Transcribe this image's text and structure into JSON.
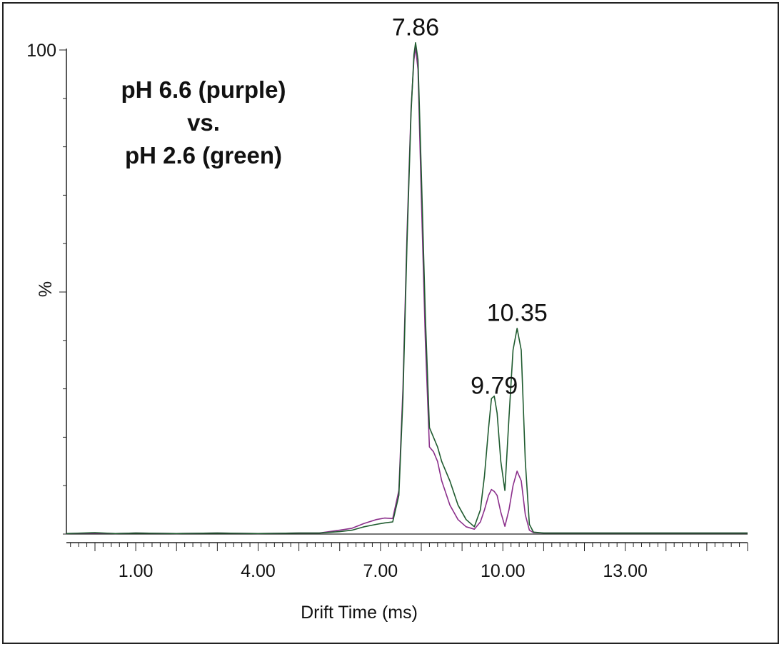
{
  "chart_data": {
    "type": "line",
    "title": "",
    "xlabel": "Drift Time (ms)",
    "ylabel": "%",
    "xlim": [
      -0.7,
      16.0
    ],
    "ylim": [
      0,
      100
    ],
    "x_tick_labels": [
      "1.00",
      "4.00",
      "7.00",
      "10.00",
      "13.00"
    ],
    "x_tick_values": [
      1.0,
      4.0,
      7.0,
      10.0,
      13.0
    ],
    "y_tick_labels": [
      "100",
      ""
    ],
    "y_tick_values": [
      100,
      50
    ],
    "annotation": [
      "pH 6.6 (purple)",
      "vs.",
      "pH 2.6 (green)"
    ],
    "peak_labels": [
      {
        "text": "7.86",
        "x": 7.86,
        "y": 103
      },
      {
        "text": "9.79",
        "x": 9.79,
        "y": 29
      },
      {
        "text": "10.35",
        "x": 10.35,
        "y": 44
      }
    ],
    "series": [
      {
        "name": "pH 6.6",
        "color": "#8b2f8b",
        "x": [
          -0.7,
          0.0,
          0.5,
          1.0,
          2.0,
          3.0,
          4.0,
          5.0,
          5.5,
          6.0,
          6.3,
          6.6,
          6.9,
          7.1,
          7.3,
          7.45,
          7.55,
          7.65,
          7.75,
          7.82,
          7.86,
          7.92,
          8.0,
          8.1,
          8.2,
          8.3,
          8.4,
          8.5,
          8.7,
          8.9,
          9.1,
          9.3,
          9.45,
          9.55,
          9.65,
          9.72,
          9.79,
          9.86,
          9.95,
          10.05,
          10.15,
          10.25,
          10.35,
          10.45,
          10.55,
          10.65,
          10.75,
          11.0,
          12.0,
          13.0,
          14.0,
          15.0,
          16.0
        ],
        "values": [
          0.1,
          0.2,
          0.1,
          0.2,
          0.1,
          0.2,
          0.1,
          0.2,
          0.2,
          0.8,
          1.2,
          2.2,
          3.0,
          3.3,
          3.2,
          9,
          30,
          62,
          88,
          98,
          100.5,
          96,
          70,
          40,
          18,
          17,
          15,
          11,
          6,
          3,
          1.5,
          1.0,
          2.5,
          5,
          8,
          9.2,
          8.8,
          8,
          4.5,
          1.6,
          5,
          10,
          13,
          11,
          4,
          0.8,
          0.3,
          0.2,
          0.2,
          0.2,
          0.2,
          0.2,
          0.2
        ]
      },
      {
        "name": "pH 2.6",
        "color": "#1f5b2f",
        "x": [
          -0.7,
          0.0,
          0.5,
          1.0,
          2.0,
          3.0,
          4.0,
          5.0,
          5.5,
          6.0,
          6.3,
          6.6,
          6.9,
          7.1,
          7.3,
          7.45,
          7.55,
          7.65,
          7.75,
          7.82,
          7.86,
          7.92,
          8.0,
          8.1,
          8.2,
          8.3,
          8.4,
          8.5,
          8.7,
          8.9,
          9.1,
          9.3,
          9.45,
          9.55,
          9.65,
          9.72,
          9.79,
          9.86,
          9.95,
          10.05,
          10.15,
          10.25,
          10.35,
          10.45,
          10.55,
          10.65,
          10.75,
          11.0,
          12.0,
          13.0,
          14.0,
          15.0,
          16.0
        ],
        "values": [
          0.1,
          0.3,
          0.1,
          0.2,
          0.1,
          0.2,
          0.1,
          0.2,
          0.2,
          0.5,
          0.8,
          1.5,
          2.0,
          2.3,
          2.5,
          8,
          28,
          60,
          87,
          99,
          101.5,
          98,
          75,
          45,
          22,
          20,
          18,
          15,
          11,
          6,
          3,
          1.5,
          5,
          12,
          22,
          28,
          28.5,
          25,
          15,
          9,
          24,
          38,
          42.5,
          38,
          15,
          2,
          0.4,
          0.2,
          0.2,
          0.2,
          0.2,
          0.2,
          0.2
        ]
      }
    ]
  }
}
